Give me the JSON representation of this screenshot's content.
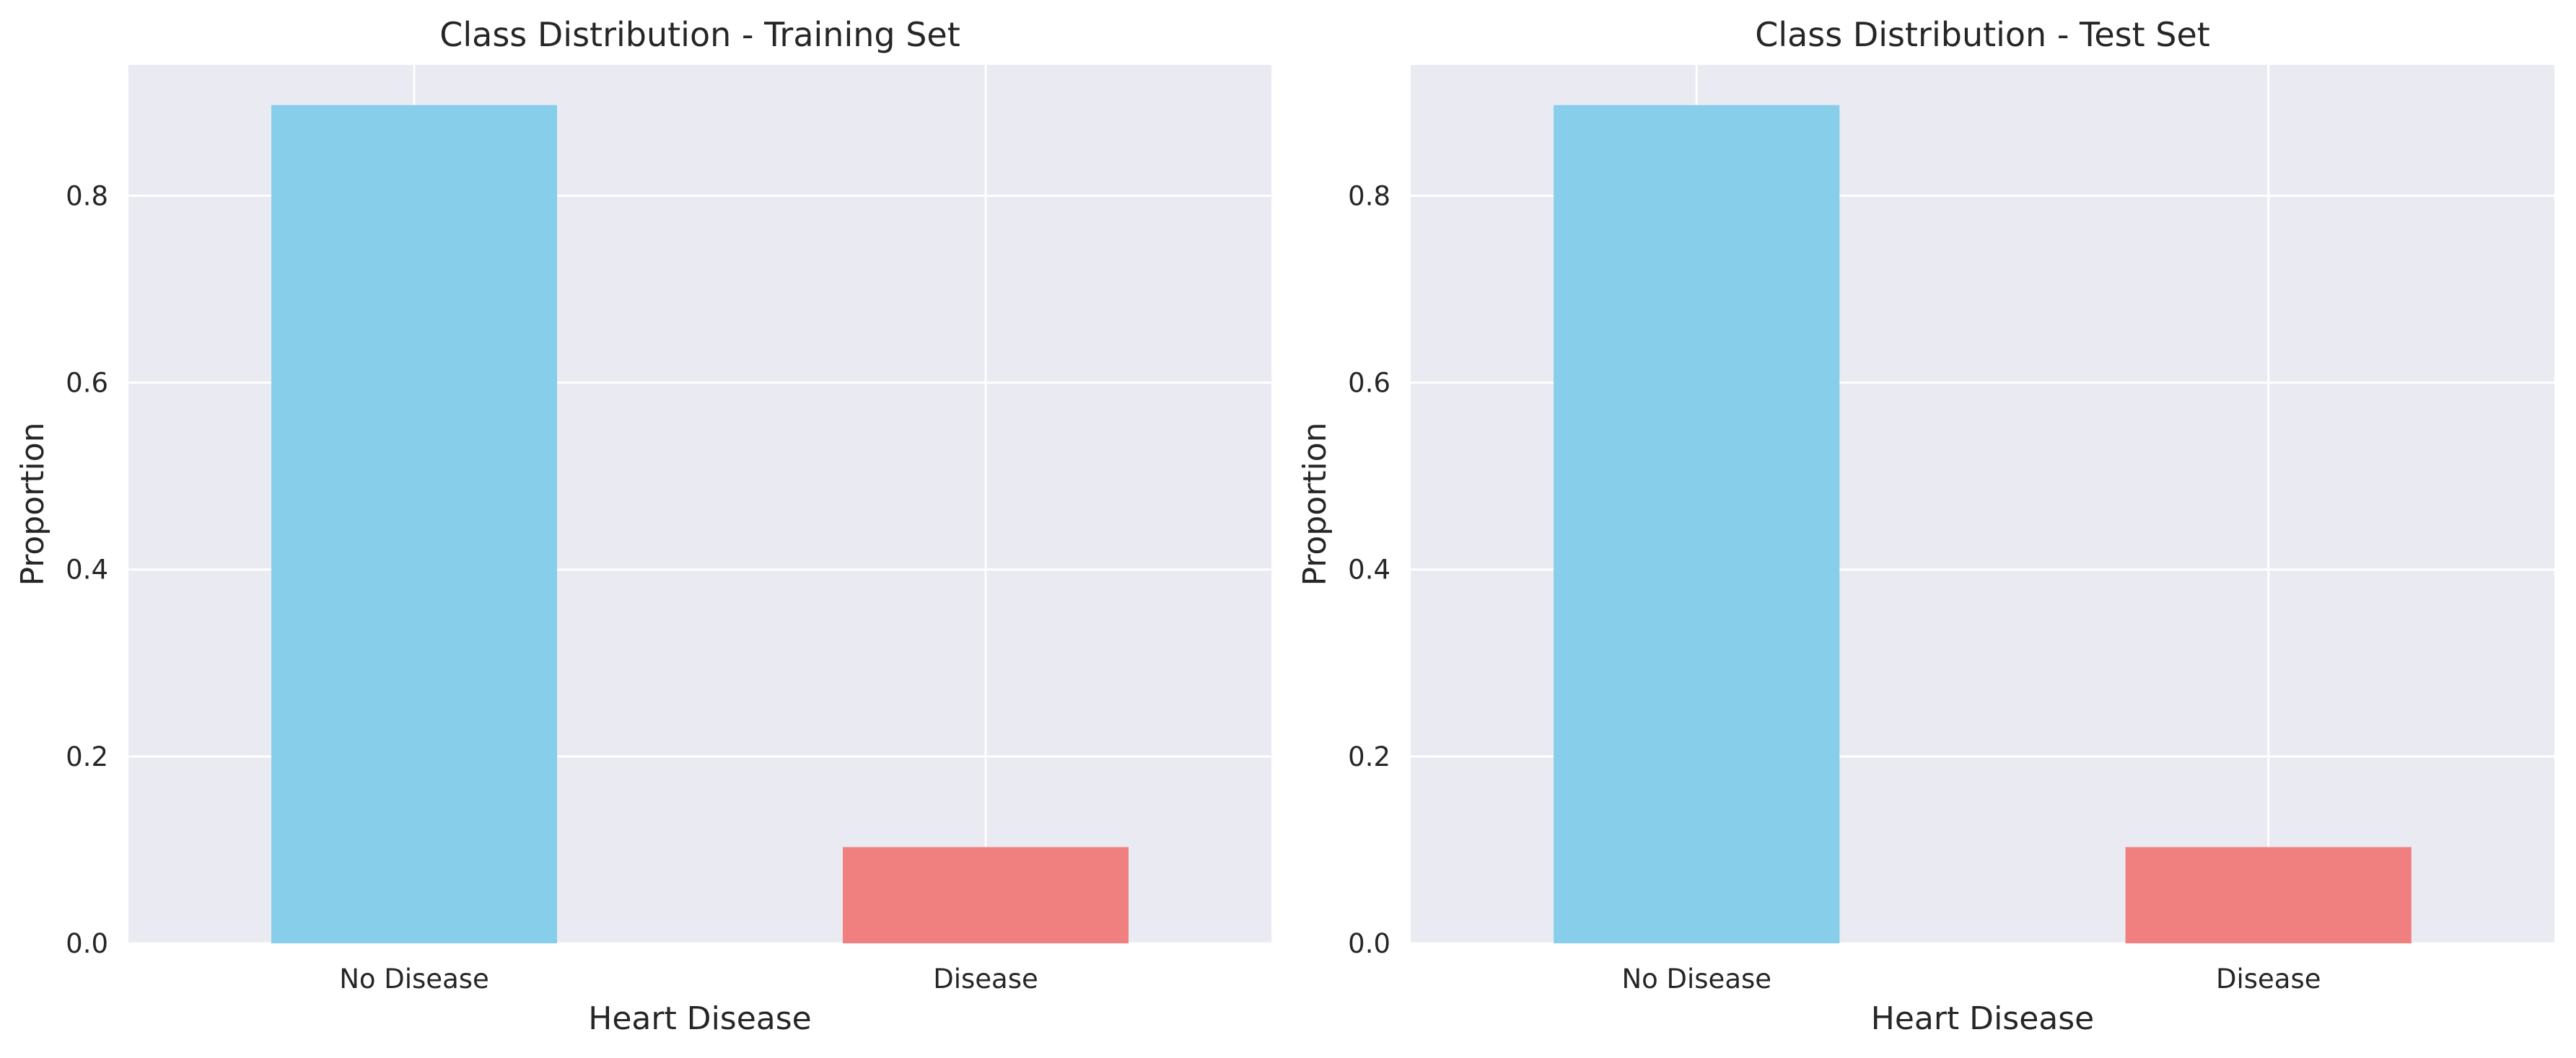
{
  "chart_data": [
    {
      "type": "bar",
      "title": "Class Distribution - Training Set",
      "xlabel": "Heart Disease",
      "ylabel": "Proportion",
      "categories": [
        "No Disease",
        "Disease"
      ],
      "values": [
        0.897,
        0.103
      ],
      "colors": [
        "#87ceeb",
        "#f08080"
      ],
      "ylim": [
        0,
        0.94
      ],
      "yticks": [
        "0.0",
        "0.2",
        "0.4",
        "0.6",
        "0.8"
      ],
      "ytick_values": [
        0,
        0.2,
        0.4,
        0.6,
        0.8
      ],
      "grid": true,
      "background": "#eaeaf2"
    },
    {
      "type": "bar",
      "title": "Class Distribution - Test Set",
      "xlabel": "Heart Disease",
      "ylabel": "Proportion",
      "categories": [
        "No Disease",
        "Disease"
      ],
      "values": [
        0.897,
        0.103
      ],
      "colors": [
        "#87ceeb",
        "#f08080"
      ],
      "ylim": [
        0,
        0.94
      ],
      "yticks": [
        "0.0",
        "0.2",
        "0.4",
        "0.6",
        "0.8"
      ],
      "ytick_values": [
        0,
        0.2,
        0.4,
        0.6,
        0.8
      ],
      "grid": true,
      "background": "#eaeaf2"
    }
  ]
}
